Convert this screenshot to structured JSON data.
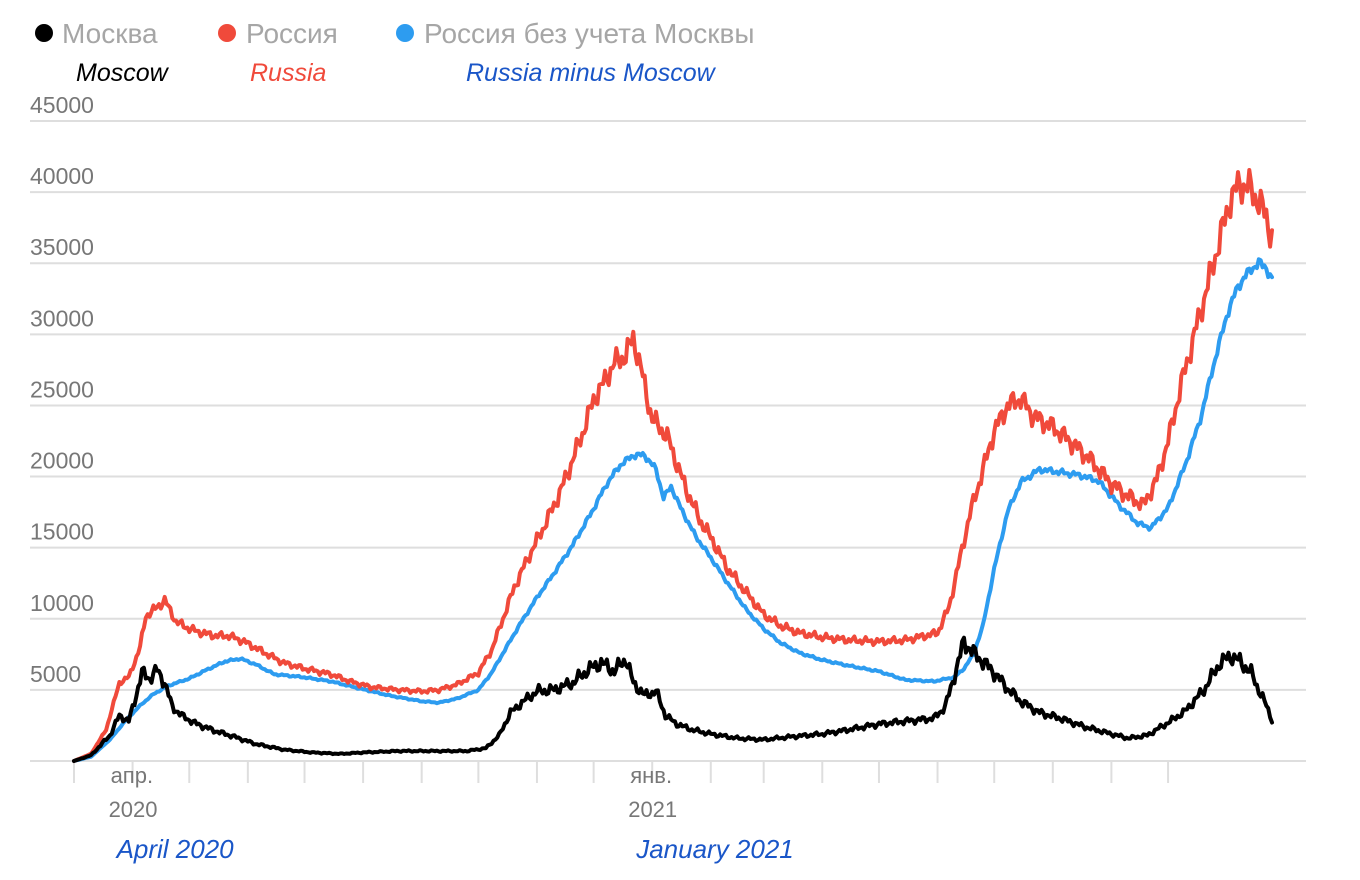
{
  "chart_data": {
    "type": "line",
    "title": "",
    "xlabel": "",
    "ylabel": "",
    "ylim": [
      0,
      45000
    ],
    "y_ticks": [
      "5000",
      "10000",
      "15000",
      "20000",
      "25000",
      "30000",
      "35000",
      "40000",
      "45000"
    ],
    "x_tick_labels": [
      {
        "month": "апр.",
        "year": "2020",
        "note": "April 2020",
        "date": "2020-04-01"
      },
      {
        "month": "янв.",
        "year": "2021",
        "note": "January 2021",
        "date": "2021-01-01"
      }
    ],
    "grid": true,
    "legend_position": "top-left",
    "legend": [
      {
        "label": "Москва",
        "english": "Moscow",
        "color": "#000000",
        "english_color": "#000000"
      },
      {
        "label": "Россия",
        "english": "Russia",
        "color": "#f04a3b",
        "english_color": "#f04a3b"
      },
      {
        "label": "Россия без учета Москвы",
        "english": "Russia minus Moscow",
        "color": "#2d9cf0",
        "english_color": "#1a56c8"
      }
    ],
    "series": [
      {
        "name": "Москва",
        "color": "#000000",
        "points": [
          [
            "2020-03-01",
            0
          ],
          [
            "2020-03-10",
            400
          ],
          [
            "2020-03-20",
            1800
          ],
          [
            "2020-03-25",
            3200
          ],
          [
            "2020-03-30",
            2800
          ],
          [
            "2020-04-02",
            4200
          ],
          [
            "2020-04-06",
            6200
          ],
          [
            "2020-04-10",
            5800
          ],
          [
            "2020-04-14",
            6400
          ],
          [
            "2020-04-18",
            5500
          ],
          [
            "2020-04-22",
            3800
          ],
          [
            "2020-04-28",
            3100
          ],
          [
            "2020-05-05",
            2600
          ],
          [
            "2020-05-15",
            2100
          ],
          [
            "2020-05-25",
            1700
          ],
          [
            "2020-06-05",
            1200
          ],
          [
            "2020-06-20",
            800
          ],
          [
            "2020-07-05",
            600
          ],
          [
            "2020-07-20",
            500
          ],
          [
            "2020-08-01",
            600
          ],
          [
            "2020-08-20",
            700
          ],
          [
            "2020-09-10",
            700
          ],
          [
            "2020-09-25",
            700
          ],
          [
            "2020-10-05",
            900
          ],
          [
            "2020-10-12",
            1800
          ],
          [
            "2020-10-18",
            3400
          ],
          [
            "2020-10-25",
            4200
          ],
          [
            "2020-11-01",
            4900
          ],
          [
            "2020-11-10",
            5000
          ],
          [
            "2020-11-20",
            5500
          ],
          [
            "2020-11-28",
            6400
          ],
          [
            "2020-12-05",
            6900
          ],
          [
            "2020-12-12",
            6300
          ],
          [
            "2020-12-18",
            7200
          ],
          [
            "2020-12-22",
            5500
          ],
          [
            "2020-12-28",
            4600
          ],
          [
            "2021-01-03",
            4900
          ],
          [
            "2021-01-08",
            3200
          ],
          [
            "2021-01-14",
            2600
          ],
          [
            "2021-01-22",
            2200
          ],
          [
            "2021-02-01",
            1900
          ],
          [
            "2021-02-15",
            1600
          ],
          [
            "2021-03-01",
            1500
          ],
          [
            "2021-03-15",
            1700
          ],
          [
            "2021-04-01",
            1900
          ],
          [
            "2021-04-15",
            2200
          ],
          [
            "2021-05-01",
            2600
          ],
          [
            "2021-05-15",
            2800
          ],
          [
            "2021-05-30",
            3000
          ],
          [
            "2021-06-05",
            3800
          ],
          [
            "2021-06-10",
            6000
          ],
          [
            "2021-06-15",
            8400
          ],
          [
            "2021-06-20",
            7600
          ],
          [
            "2021-06-25",
            7000
          ],
          [
            "2021-07-01",
            6200
          ],
          [
            "2021-07-08",
            5100
          ],
          [
            "2021-07-15",
            4200
          ],
          [
            "2021-07-25",
            3400
          ],
          [
            "2021-08-05",
            3000
          ],
          [
            "2021-08-18",
            2400
          ],
          [
            "2021-09-01",
            1900
          ],
          [
            "2021-09-10",
            1600
          ],
          [
            "2021-09-20",
            1800
          ],
          [
            "2021-10-01",
            2700
          ],
          [
            "2021-10-10",
            3500
          ],
          [
            "2021-10-20",
            5000
          ],
          [
            "2021-10-28",
            6800
          ],
          [
            "2021-11-03",
            7400
          ],
          [
            "2021-11-08",
            7000
          ],
          [
            "2021-11-14",
            6200
          ],
          [
            "2021-11-18",
            5000
          ],
          [
            "2021-11-22",
            3900
          ],
          [
            "2021-11-25",
            2900
          ]
        ]
      },
      {
        "name": "Россия",
        "color": "#f04a3b",
        "points": [
          [
            "2020-03-01",
            0
          ],
          [
            "2020-03-10",
            500
          ],
          [
            "2020-03-18",
            2200
          ],
          [
            "2020-03-25",
            5500
          ],
          [
            "2020-03-30",
            5900
          ],
          [
            "2020-04-05",
            8000
          ],
          [
            "2020-04-08",
            10200
          ],
          [
            "2020-04-13",
            10700
          ],
          [
            "2020-04-18",
            11300
          ],
          [
            "2020-04-24",
            9800
          ],
          [
            "2020-05-01",
            9300
          ],
          [
            "2020-05-08",
            9000
          ],
          [
            "2020-05-15",
            8800
          ],
          [
            "2020-05-22",
            8800
          ],
          [
            "2020-05-30",
            8400
          ],
          [
            "2020-06-10",
            7600
          ],
          [
            "2020-06-20",
            6900
          ],
          [
            "2020-07-01",
            6500
          ],
          [
            "2020-07-15",
            6100
          ],
          [
            "2020-07-25",
            5600
          ],
          [
            "2020-08-05",
            5200
          ],
          [
            "2020-08-20",
            5000
          ],
          [
            "2020-09-01",
            4900
          ],
          [
            "2020-09-10",
            5000
          ],
          [
            "2020-09-20",
            5400
          ],
          [
            "2020-10-01",
            6200
          ],
          [
            "2020-10-08",
            7800
          ],
          [
            "2020-10-14",
            10000
          ],
          [
            "2020-10-20",
            12200
          ],
          [
            "2020-10-27",
            14200
          ],
          [
            "2020-11-04",
            16300
          ],
          [
            "2020-11-12",
            18500
          ],
          [
            "2020-11-18",
            20500
          ],
          [
            "2020-11-25",
            23000
          ],
          [
            "2020-12-01",
            25400
          ],
          [
            "2020-12-06",
            26500
          ],
          [
            "2020-12-12",
            28000
          ],
          [
            "2020-12-18",
            28500
          ],
          [
            "2020-12-22",
            29800
          ],
          [
            "2020-12-27",
            27000
          ],
          [
            "2021-01-01",
            24000
          ],
          [
            "2021-01-05",
            23500
          ],
          [
            "2021-01-10",
            22500
          ],
          [
            "2021-01-15",
            20500
          ],
          [
            "2021-01-20",
            18800
          ],
          [
            "2021-01-26",
            17000
          ],
          [
            "2021-02-02",
            15500
          ],
          [
            "2021-02-10",
            13500
          ],
          [
            "2021-02-20",
            11800
          ],
          [
            "2021-03-01",
            10300
          ],
          [
            "2021-03-10",
            9500
          ],
          [
            "2021-03-20",
            9000
          ],
          [
            "2021-04-01",
            8700
          ],
          [
            "2021-04-15",
            8500
          ],
          [
            "2021-05-01",
            8400
          ],
          [
            "2021-05-15",
            8500
          ],
          [
            "2021-06-01",
            9000
          ],
          [
            "2021-06-07",
            10800
          ],
          [
            "2021-06-12",
            13700
          ],
          [
            "2021-06-18",
            17300
          ],
          [
            "2021-06-24",
            20000
          ],
          [
            "2021-07-01",
            23200
          ],
          [
            "2021-07-08",
            25000
          ],
          [
            "2021-07-15",
            25500
          ],
          [
            "2021-07-22",
            24200
          ],
          [
            "2021-08-01",
            23500
          ],
          [
            "2021-08-10",
            22500
          ],
          [
            "2021-08-20",
            21300
          ],
          [
            "2021-09-01",
            19500
          ],
          [
            "2021-09-10",
            18600
          ],
          [
            "2021-09-18",
            18000
          ],
          [
            "2021-09-25",
            19800
          ],
          [
            "2021-10-01",
            22500
          ],
          [
            "2021-10-08",
            26500
          ],
          [
            "2021-10-15",
            30000
          ],
          [
            "2021-10-22",
            33500
          ],
          [
            "2021-10-28",
            36500
          ],
          [
            "2021-11-03",
            39500
          ],
          [
            "2021-11-08",
            40600
          ],
          [
            "2021-11-14",
            40200
          ],
          [
            "2021-11-18",
            39300
          ],
          [
            "2021-11-22",
            38300
          ],
          [
            "2021-11-25",
            36800
          ]
        ]
      },
      {
        "name": "Россия без учета Москвы",
        "color": "#2d9cf0",
        "points": [
          [
            "2020-03-01",
            0
          ],
          [
            "2020-03-10",
            300
          ],
          [
            "2020-03-20",
            1500
          ],
          [
            "2020-03-28",
            2800
          ],
          [
            "2020-04-05",
            3900
          ],
          [
            "2020-04-12",
            4700
          ],
          [
            "2020-04-20",
            5300
          ],
          [
            "2020-05-01",
            5800
          ],
          [
            "2020-05-10",
            6400
          ],
          [
            "2020-05-20",
            7000
          ],
          [
            "2020-05-28",
            7200
          ],
          [
            "2020-06-05",
            6800
          ],
          [
            "2020-06-15",
            6100
          ],
          [
            "2020-06-30",
            5900
          ],
          [
            "2020-07-15",
            5600
          ],
          [
            "2020-07-30",
            5100
          ],
          [
            "2020-08-15",
            4600
          ],
          [
            "2020-09-01",
            4200
          ],
          [
            "2020-09-10",
            4100
          ],
          [
            "2020-09-20",
            4400
          ],
          [
            "2020-10-01",
            5000
          ],
          [
            "2020-10-08",
            6200
          ],
          [
            "2020-10-15",
            7800
          ],
          [
            "2020-10-22",
            9400
          ],
          [
            "2020-11-01",
            11500
          ],
          [
            "2020-11-10",
            13200
          ],
          [
            "2020-11-20",
            15200
          ],
          [
            "2020-11-30",
            17500
          ],
          [
            "2020-12-08",
            19500
          ],
          [
            "2020-12-15",
            20800
          ],
          [
            "2020-12-22",
            21500
          ],
          [
            "2020-12-28",
            21500
          ],
          [
            "2021-01-03",
            20500
          ],
          [
            "2021-01-07",
            18500
          ],
          [
            "2021-01-11",
            19300
          ],
          [
            "2021-01-16",
            17800
          ],
          [
            "2021-01-24",
            15800
          ],
          [
            "2021-02-01",
            14300
          ],
          [
            "2021-02-10",
            12500
          ],
          [
            "2021-02-20",
            10600
          ],
          [
            "2021-03-01",
            9300
          ],
          [
            "2021-03-10",
            8300
          ],
          [
            "2021-03-20",
            7600
          ],
          [
            "2021-04-01",
            7100
          ],
          [
            "2021-04-15",
            6700
          ],
          [
            "2021-05-01",
            6300
          ],
          [
            "2021-05-15",
            5700
          ],
          [
            "2021-05-30",
            5600
          ],
          [
            "2021-06-10",
            5900
          ],
          [
            "2021-06-15",
            6500
          ],
          [
            "2021-06-20",
            7500
          ],
          [
            "2021-06-25",
            9500
          ],
          [
            "2021-07-01",
            13500
          ],
          [
            "2021-07-08",
            17500
          ],
          [
            "2021-07-15",
            19600
          ],
          [
            "2021-07-25",
            20500
          ],
          [
            "2021-08-05",
            20300
          ],
          [
            "2021-08-15",
            20100
          ],
          [
            "2021-08-25",
            19700
          ],
          [
            "2021-09-05",
            18000
          ],
          [
            "2021-09-15",
            16700
          ],
          [
            "2021-09-22",
            16400
          ],
          [
            "2021-10-01",
            17800
          ],
          [
            "2021-10-10",
            20800
          ],
          [
            "2021-10-18",
            24000
          ],
          [
            "2021-10-25",
            27800
          ],
          [
            "2021-11-01",
            31300
          ],
          [
            "2021-11-07",
            33400
          ],
          [
            "2021-11-14",
            34600
          ],
          [
            "2021-11-18",
            35000
          ],
          [
            "2021-11-22",
            34700
          ],
          [
            "2021-11-25",
            33800
          ]
        ]
      }
    ]
  }
}
